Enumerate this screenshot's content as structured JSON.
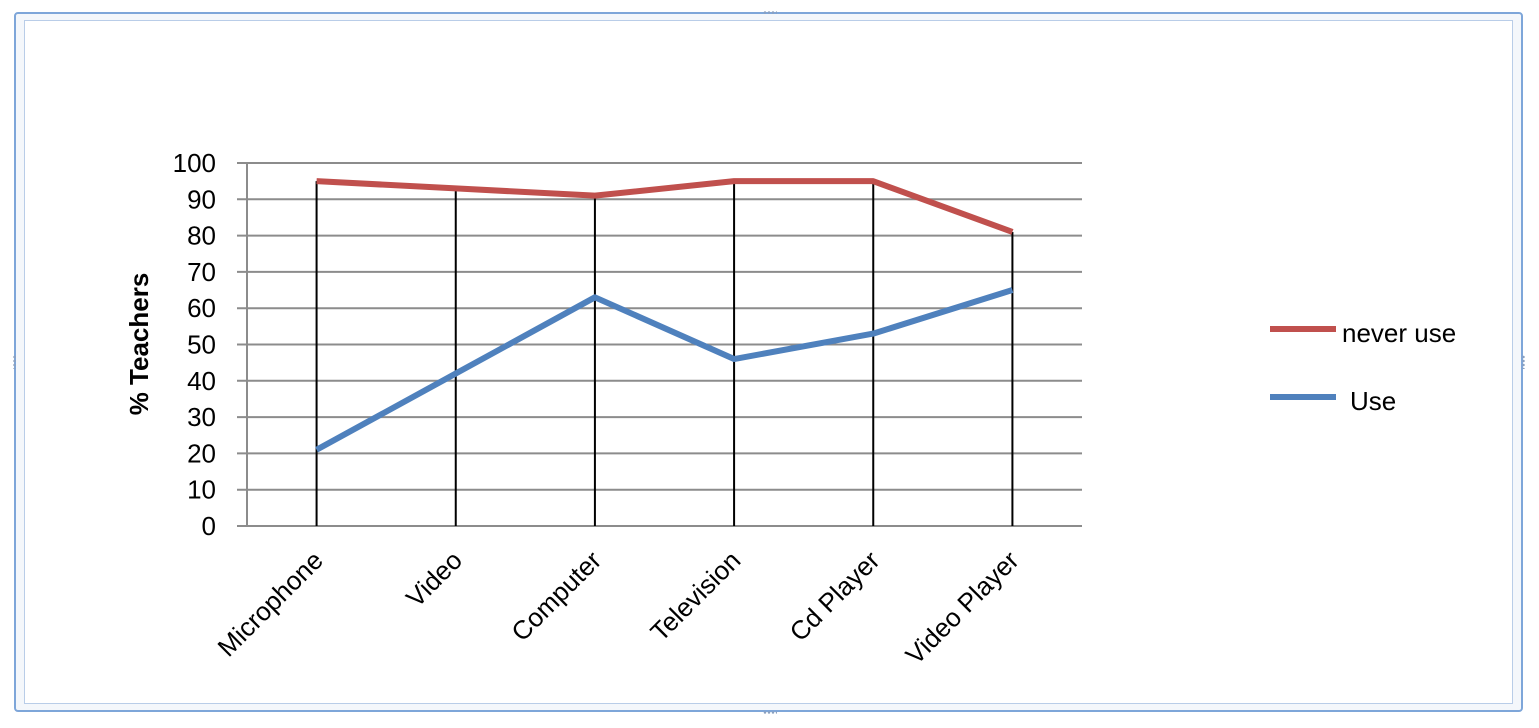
{
  "chart_data": {
    "type": "line",
    "categories": [
      "Microphone",
      "Video",
      "Computer",
      "Television",
      "Cd Player",
      "Video Player"
    ],
    "series": [
      {
        "name": "never use",
        "values": [
          95,
          93,
          91,
          95,
          95,
          81
        ],
        "color": "#c0504d"
      },
      {
        "name": "Use",
        "values": [
          21,
          42,
          63,
          46,
          53,
          65
        ],
        "color": "#4f81bd"
      }
    ],
    "title": "",
    "xlabel": "",
    "ylabel": "% Teachers",
    "ylim": [
      0,
      100
    ],
    "yticks": [
      "0",
      "10",
      "20",
      "30",
      "40",
      "50",
      "60",
      "70",
      "80",
      "90",
      "100"
    ],
    "grid": true,
    "high_low_lines": true,
    "legend_position": "right"
  }
}
